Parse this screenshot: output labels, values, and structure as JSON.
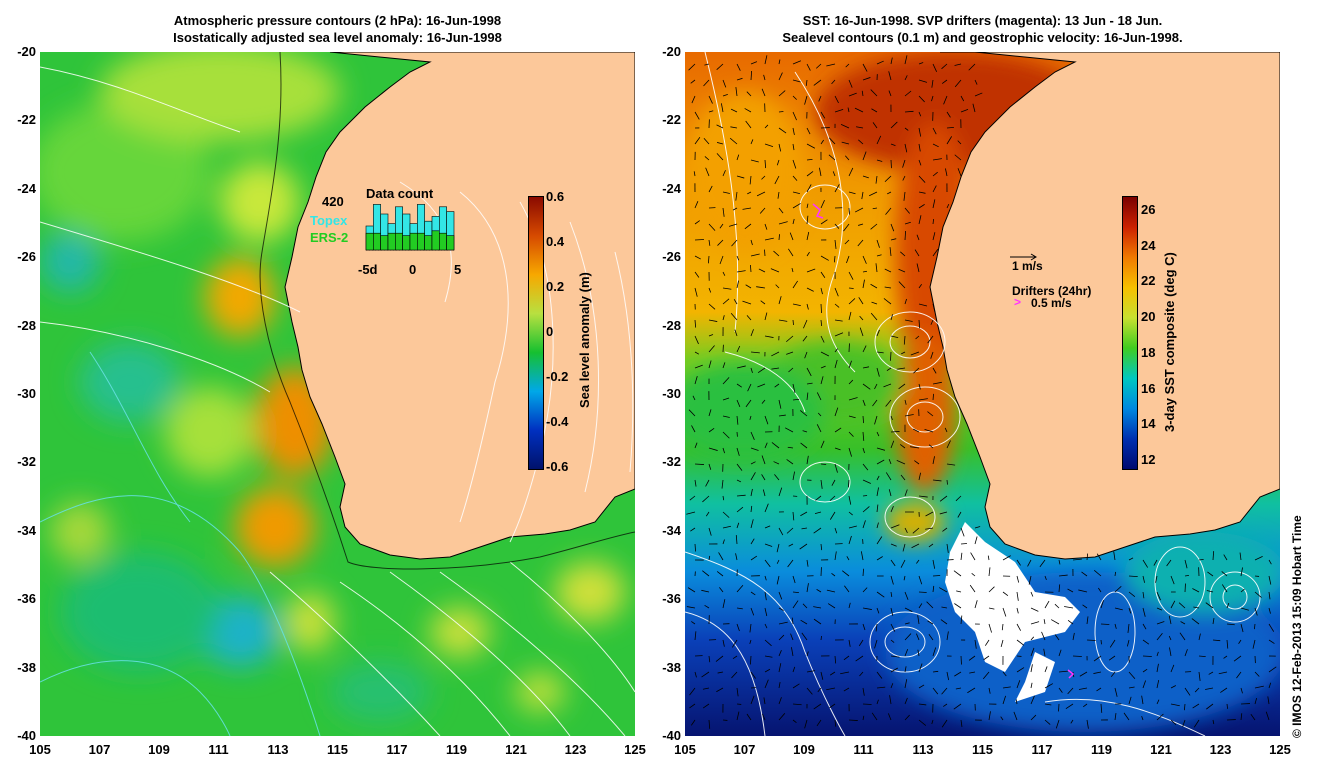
{
  "left_panel": {
    "title_line1": "Atmospheric pressure contours (2 hPa): 16-Jun-1998",
    "title_line2": "Isostatically adjusted sea level anomaly: 16-Jun-1998",
    "colorbar": {
      "label": "Sea level anomaly (m)",
      "ticks": [
        "0.6",
        "0.4",
        "0.2",
        "0",
        "-0.2",
        "-0.4",
        "-0.6"
      ],
      "colors": [
        "#8a0a00",
        "#d64a00",
        "#f7a800",
        "#b8e040",
        "#16c030",
        "#00a8e8",
        "#0030c0",
        "#00126b"
      ]
    },
    "inset": {
      "title": "Data count",
      "max_label": "420",
      "series": [
        "Topex",
        "ERS-2"
      ],
      "series_colors": [
        "#33e6e6",
        "#22cc22"
      ],
      "x_ticks": [
        "-5d",
        "0",
        "5"
      ],
      "topex_counts": [
        1,
        0,
        1,
        1,
        0,
        1,
        1,
        0,
        1,
        1,
        0,
        1
      ],
      "ers2_counts": [
        1,
        0,
        1,
        1,
        0,
        1,
        1,
        0,
        1,
        1,
        0,
        1
      ],
      "bar_top_fraction": [
        0.5,
        0.95,
        0.75,
        0.55,
        0.9,
        0.75,
        0.55,
        0.95,
        0.6,
        0.7,
        0.9,
        0.8
      ],
      "ers2_fraction": [
        0.35,
        0.35,
        0.3,
        0.35,
        0.35,
        0.3,
        0.35,
        0.35,
        0.3,
        0.4,
        0.35,
        0.3
      ]
    }
  },
  "right_panel": {
    "title_line1": "SST: 16-Jun-1998. SVP drifters (magenta): 13 Jun - 18 Jun.",
    "title_line2": "Sealevel contours (0.1 m) and geostrophic velocity: 16-Jun-1998.",
    "colorbar": {
      "label": "3-day SST composite (deg C)",
      "ticks": [
        "26",
        "24",
        "22",
        "20",
        "18",
        "16",
        "14",
        "12"
      ],
      "colors": [
        "#7a0000",
        "#cc2200",
        "#f07a00",
        "#f7c000",
        "#c8e030",
        "#40cc20",
        "#00c8c0",
        "#0088e0",
        "#0030b0",
        "#000a70"
      ]
    },
    "legend_speed": "1 m/s",
    "legend_drifters": "Drifters (24hr)",
    "legend_drifter_speed": "0.5 m/s"
  },
  "axes": {
    "y_ticks": [
      "-20",
      "-22",
      "-24",
      "-26",
      "-28",
      "-30",
      "-32",
      "-34",
      "-36",
      "-38",
      "-40"
    ],
    "x_ticks": [
      "105",
      "107",
      "109",
      "111",
      "113",
      "115",
      "117",
      "119",
      "121",
      "123",
      "125"
    ]
  },
  "colors": {
    "land": "#fcc89a",
    "coast": "#000000",
    "contour": "#ffffff"
  },
  "credit": "© IMOS 12-Feb-2013 15:09 Hobart Time"
}
